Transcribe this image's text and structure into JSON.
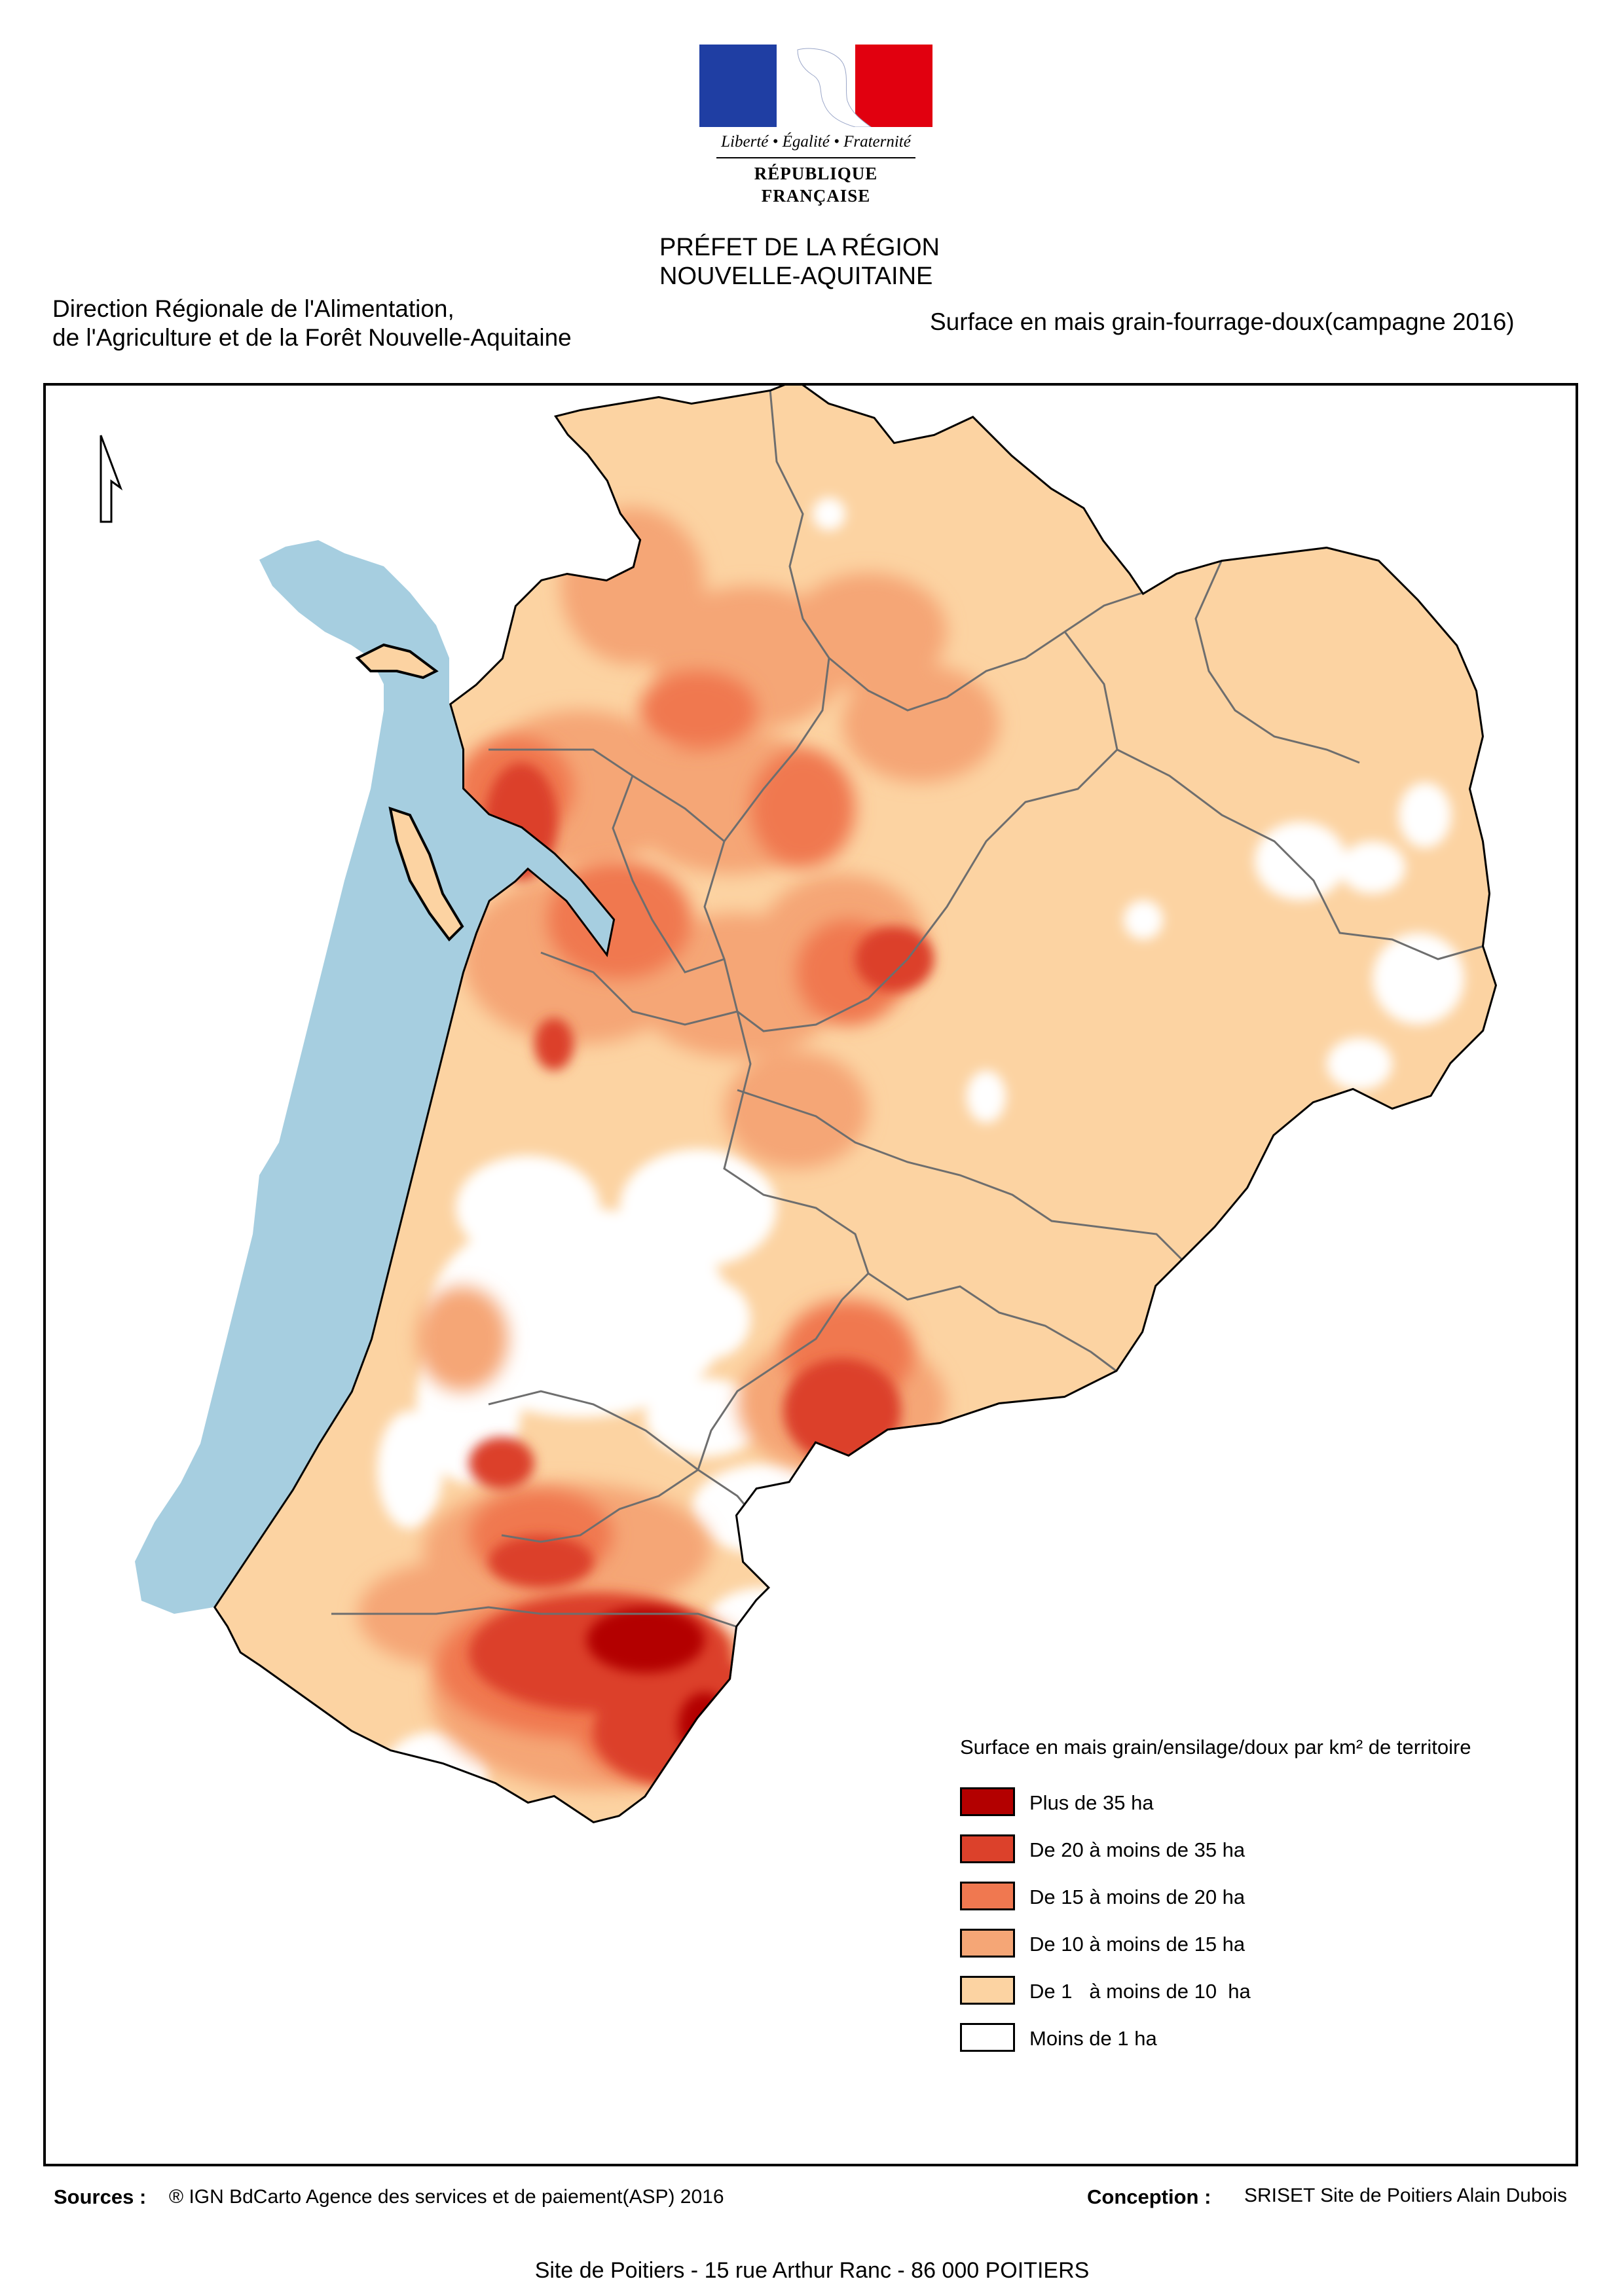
{
  "logo": {
    "motto": "Liberté • Égalité • Fraternité",
    "republic": "RÉPUBLIQUE FRANÇAISE",
    "colors": {
      "blue": "#1f3ea3",
      "red": "#e1000f"
    }
  },
  "header": {
    "prefet_line1": "PRÉFET DE LA RÉGION",
    "prefet_line2": "NOUVELLE-AQUITAINE",
    "service_line1": "Direction Régionale de l'Alimentation,",
    "service_line2": "de l'Agriculture et de la Forêt Nouvelle-Aquitaine",
    "subject": "Surface en mais grain-fourrage-doux(campagne 2016)"
  },
  "map": {
    "sea_color": "#a6cee0",
    "border_color": "#000000",
    "north_arrow_icon": "north-arrow-icon"
  },
  "legend": {
    "title": "Surface en mais grain/ensilage/doux  par km² de territoire",
    "items": [
      {
        "label": "Plus de 35 ha",
        "color": "#b30000"
      },
      {
        "label": "De 20 à moins de 35 ha",
        "color": "#dc412b"
      },
      {
        "label": "De 15 à moins de 20 ha",
        "color": "#f07850"
      },
      {
        "label": "De 10 à moins de 15 ha",
        "color": "#f5a676"
      },
      {
        "label": "De 1   à moins de 10  ha",
        "color": "#fcd3a2"
      },
      {
        "label": "Moins de 1 ha",
        "color": "#ffffff"
      }
    ]
  },
  "footer": {
    "sources_label": "Sources :",
    "sources_text": "® IGN BdCarto Agence des services et de paiement(ASP) 2016",
    "conception_label": "Conception :",
    "conception_text": "SRISET Site de Poitiers Alain Dubois",
    "address": "Site de Poitiers - 15 rue Arthur Ranc - 86 000 POITIERS"
  }
}
